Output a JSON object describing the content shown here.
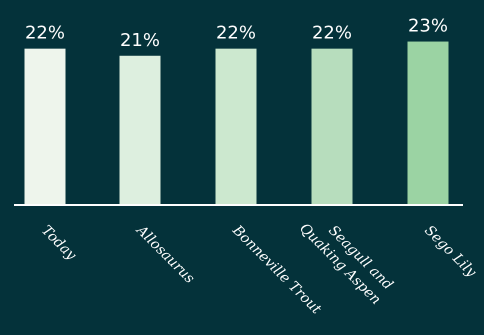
{
  "chart_data": {
    "type": "bar",
    "categories": [
      "Today",
      "Allosaurus",
      "Bonneville Trout",
      "Seagull and\nQuaking Aspen",
      "Sego Lily"
    ],
    "value_labels": [
      "22%",
      "21%",
      "22%",
      "22%",
      "23%"
    ],
    "values": [
      22,
      21,
      22,
      22,
      23
    ],
    "ylim": [
      0,
      23.5
    ],
    "grid": false,
    "legend": "none",
    "colors": [
      "#eef5ec",
      "#ddefdf",
      "#cce8cf",
      "#b7ddbd",
      "#9bd3a3"
    ],
    "axis_color": "#ffffff",
    "background": "#04323a"
  }
}
